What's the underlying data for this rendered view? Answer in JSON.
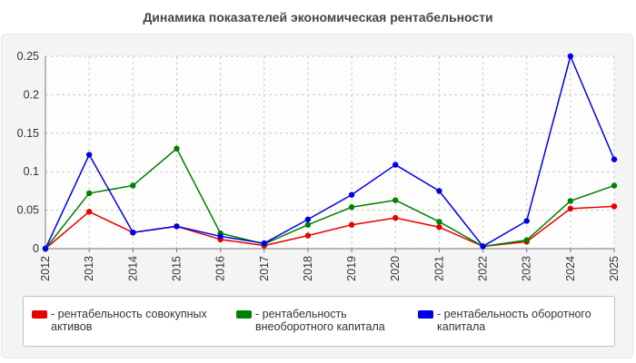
{
  "title": "Динамика показателей экономическая рентабельности",
  "colors": {
    "series1": "#e60000",
    "series2": "#008000",
    "series3": "#0000e6"
  },
  "chart_data": {
    "type": "line",
    "title": "Динамика показателей экономическая рентабельности",
    "x": [
      "2012",
      "2013",
      "2014",
      "2015",
      "2016",
      "2017",
      "2018",
      "2019",
      "2020",
      "2021",
      "2022",
      "2023",
      "2024",
      "2025"
    ],
    "series": [
      {
        "name": "рентабельность совокупных активов",
        "color": "#e60000",
        "values": [
          0.0,
          0.048,
          0.021,
          0.029,
          0.012,
          0.004,
          0.017,
          0.031,
          0.04,
          0.028,
          0.003,
          0.009,
          0.052,
          0.055
        ]
      },
      {
        "name": "рентабельность внеоборотного капитала",
        "color": "#008000",
        "values": [
          0.0,
          0.072,
          0.082,
          0.13,
          0.02,
          0.006,
          0.031,
          0.054,
          0.063,
          0.035,
          0.003,
          0.011,
          0.062,
          0.082
        ]
      },
      {
        "name": "рентабельность оборотного капитала",
        "color": "#0000e6",
        "values": [
          0.0,
          0.122,
          0.021,
          0.029,
          0.016,
          0.007,
          0.038,
          0.07,
          0.109,
          0.075,
          0.003,
          0.036,
          0.25,
          0.116
        ]
      }
    ],
    "yticks": [
      "0",
      "0.05",
      "0.1",
      "0.15",
      "0.2",
      "0.25"
    ],
    "ylim": [
      0,
      0.25
    ],
    "grid": true,
    "legend_position": "bottom",
    "legend": [
      {
        "label": "рентабельность совокупных активов",
        "color": "#e60000"
      },
      {
        "label": "рентабельность внеоборотного капитала",
        "color": "#008000"
      },
      {
        "label": "рентабельность оборотного капитала",
        "color": "#0000e6"
      }
    ]
  }
}
